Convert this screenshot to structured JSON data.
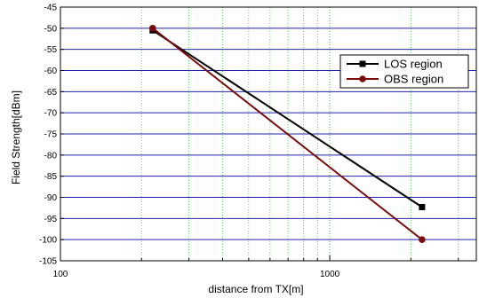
{
  "chart_data": {
    "type": "line",
    "title": "",
    "xlabel": "distance from TX[m]",
    "ylabel": "Field Strength[dBm]",
    "x_scale": "log",
    "xlim": [
      100,
      3500
    ],
    "ylim": [
      -105,
      -45
    ],
    "x_ticks": [
      100,
      1000
    ],
    "x_tick_labels": [
      "100",
      "1000"
    ],
    "y_ticks": [
      -45,
      -50,
      -55,
      -60,
      -65,
      -70,
      -75,
      -80,
      -85,
      -90,
      -95,
      -100,
      -105
    ],
    "y_tick_labels": [
      "-45",
      "-50",
      "-55",
      "-60",
      "-65",
      "-70",
      "-75",
      "-80",
      "-85",
      "-90",
      "-95",
      "-100",
      "-105"
    ],
    "grid": true,
    "legend_position": "top-right",
    "series": [
      {
        "name": "LOS region",
        "color": "#000000",
        "marker": "square",
        "x": [
          220,
          2200
        ],
        "y": [
          -50.5,
          -92.3
        ]
      },
      {
        "name": "OBS region",
        "color": "#7a0c0c",
        "marker": "circle",
        "x": [
          220,
          2200
        ],
        "y": [
          -50,
          -100
        ]
      }
    ],
    "colors": {
      "hgrid": "#2222aa",
      "vgrid": "#33cc33"
    }
  }
}
